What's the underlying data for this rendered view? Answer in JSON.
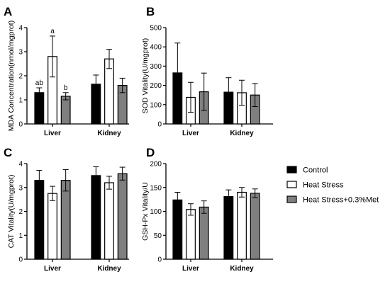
{
  "figure": {
    "legend": {
      "placement": "right",
      "entries": [
        {
          "name": "Control",
          "fill": "#000000"
        },
        {
          "name": "Heat Stress",
          "fill": "#ffffff"
        },
        {
          "name": "Heat Stress+0.3%Met",
          "fill": "#7f7f7f"
        }
      ]
    }
  },
  "chart_data": [
    {
      "panel": "A",
      "type": "bar",
      "ylabel": "MDA Concentration(nmol/mgprot)",
      "ylim": [
        0,
        4
      ],
      "yticks": [
        0,
        1,
        2,
        3,
        4
      ],
      "categories": [
        "Liver",
        "Kidney"
      ],
      "series": [
        {
          "name": "Control",
          "values": [
            1.3,
            1.65
          ],
          "errors": [
            0.2,
            0.38
          ]
        },
        {
          "name": "Heat Stress",
          "values": [
            2.8,
            2.7
          ],
          "errors": [
            0.85,
            0.4
          ]
        },
        {
          "name": "Heat Stress+0.3%Met",
          "values": [
            1.15,
            1.6
          ],
          "errors": [
            0.15,
            0.3
          ]
        }
      ],
      "annotations": [
        [
          "ab",
          "a",
          "b"
        ],
        [
          "",
          "",
          ""
        ]
      ]
    },
    {
      "panel": "B",
      "type": "bar",
      "ylabel": "SOD Vitality(U/mgprot)",
      "ylim": [
        0,
        500
      ],
      "yticks": [
        0,
        100,
        200,
        300,
        400,
        500
      ],
      "categories": [
        "Liver",
        "Kidney"
      ],
      "series": [
        {
          "name": "Control",
          "values": [
            265,
            165
          ],
          "errors": [
            155,
            75
          ]
        },
        {
          "name": "Heat Stress",
          "values": [
            138,
            162
          ],
          "errors": [
            78,
            65
          ]
        },
        {
          "name": "Heat Stress+0.3%Met",
          "values": [
            167,
            150
          ],
          "errors": [
            97,
            60
          ]
        }
      ]
    },
    {
      "panel": "C",
      "type": "bar",
      "ylabel": "CAT Vitality(U/mgprot)",
      "ylim": [
        0,
        4
      ],
      "yticks": [
        0,
        1,
        2,
        3,
        4
      ],
      "categories": [
        "Liver",
        "Kidney"
      ],
      "series": [
        {
          "name": "Control",
          "values": [
            3.3,
            3.5
          ],
          "errors": [
            0.42,
            0.37
          ]
        },
        {
          "name": "Heat Stress",
          "values": [
            2.75,
            3.2
          ],
          "errors": [
            0.3,
            0.27
          ]
        },
        {
          "name": "Heat Stress+0.3%Met",
          "values": [
            3.3,
            3.58
          ],
          "errors": [
            0.45,
            0.27
          ]
        }
      ]
    },
    {
      "panel": "D",
      "type": "bar",
      "ylabel": "GSH-Px Vitality/U",
      "ylim": [
        0,
        200
      ],
      "yticks": [
        0,
        50,
        100,
        150,
        200
      ],
      "categories": [
        "Liver",
        "Kidney"
      ],
      "series": [
        {
          "name": "Control",
          "values": [
            124,
            131
          ],
          "errors": [
            16,
            14
          ]
        },
        {
          "name": "Heat Stress",
          "values": [
            104,
            140
          ],
          "errors": [
            12,
            10
          ]
        },
        {
          "name": "Heat Stress+0.3%Met",
          "values": [
            109,
            138
          ],
          "errors": [
            13,
            9
          ]
        }
      ]
    }
  ]
}
